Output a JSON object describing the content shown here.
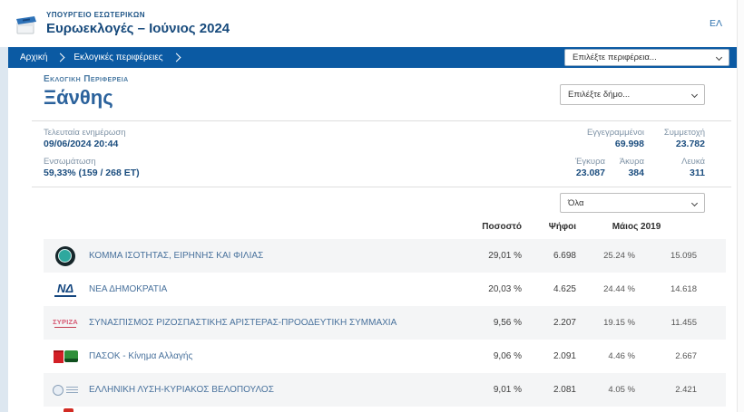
{
  "header": {
    "ministry": "ΥΠΟΥΡΓΕΙΟ ΕΣΩΤΕΡΙΚΩΝ",
    "title": "Ευρωεκλογές – Ιούνιος 2024",
    "language": "ΕΛ"
  },
  "breadcrumb": {
    "items": [
      "Αρχική",
      "Εκλογικές περιφέρειες"
    ],
    "region_select_placeholder": "Επιλέξτε περιφέρεια..."
  },
  "region": {
    "label": "Εκλογική Περιφέρεια",
    "name": "Ξάνθης",
    "municipality_select_placeholder": "Επιλέξτε δήμο..."
  },
  "stats": {
    "last_update": {
      "label": "Τελευταία ενημέρωση",
      "value": "09/06/2024 20:44"
    },
    "integration": {
      "label": "Ενσωμάτωση",
      "value": "59,33% (159 / 268 ΕΤ)"
    },
    "registered": {
      "label": "Εγγεγραμμένοι",
      "value": "69.998"
    },
    "turnout": {
      "label": "Συμμετοχή",
      "value": "23.782"
    },
    "valid": {
      "label": "Έγκυρα",
      "value": "23.087"
    },
    "invalid": {
      "label": "Άκυρα",
      "value": "384"
    },
    "blank": {
      "label": "Λευκά",
      "value": "311"
    }
  },
  "results": {
    "filter_value": "Όλα",
    "headers": {
      "percent": "Ποσοστό",
      "votes": "Ψήφοι",
      "previous": "Μάιος 2019"
    },
    "rows": [
      {
        "party": "ΚΟΜΜΑ ΙΣΟΤΗΤΑΣ, ΕΙΡΗΝΗΣ ΚΑΙ ΦΙΛΙΑΣ",
        "percent": "29,01 %",
        "votes": "6.698",
        "prev_percent": "25.24 %",
        "prev_votes": "15.095",
        "logo": "kief",
        "logo_text": ""
      },
      {
        "party": "ΝΕΑ ΔΗΜΟΚΡΑΤΙΑ",
        "percent": "20,03 %",
        "votes": "4.625",
        "prev_percent": "24.44 %",
        "prev_votes": "14.618",
        "logo": "nd",
        "logo_text": "ΝΔ"
      },
      {
        "party": "ΣΥΝΑΣΠΙΣΜΟΣ ΡΙΖΟΣΠΑΣΤΙΚΗΣ ΑΡΙΣΤΕΡΑΣ-ΠΡΟΟΔΕΥΤΙΚΗ ΣΥΜΜΑΧΙΑ",
        "percent": "9,56 %",
        "votes": "2.207",
        "prev_percent": "19.15 %",
        "prev_votes": "11.455",
        "logo": "syriza",
        "logo_text": "ΣΥΡΙΖΑ"
      },
      {
        "party": "ΠΑΣΟΚ - Κίνημα Αλλαγής",
        "percent": "9,06 %",
        "votes": "2.091",
        "prev_percent": "4.46 %",
        "prev_votes": "2.667",
        "logo": "pasok",
        "logo_text": ""
      },
      {
        "party": "ΕΛΛΗΝΙΚΗ ΛΥΣΗ-ΚΥΡΙΑΚΟΣ ΒΕΛΟΠΟΥΛΟΣ",
        "percent": "9,01 %",
        "votes": "2.081",
        "prev_percent": "4.05 %",
        "prev_votes": "2.421",
        "logo": "elliniki-lysi",
        "logo_text": ""
      }
    ]
  },
  "colors": {
    "breadcrumb_blue": "#0b5aa3",
    "title_navy": "#174a7c",
    "link_blue": "#2f72ae",
    "row_stripe": "#f4f5f6",
    "label_gray": "#7f93a6",
    "value_navy": "#1c4e7f",
    "party_name_blue": "#48719c"
  }
}
